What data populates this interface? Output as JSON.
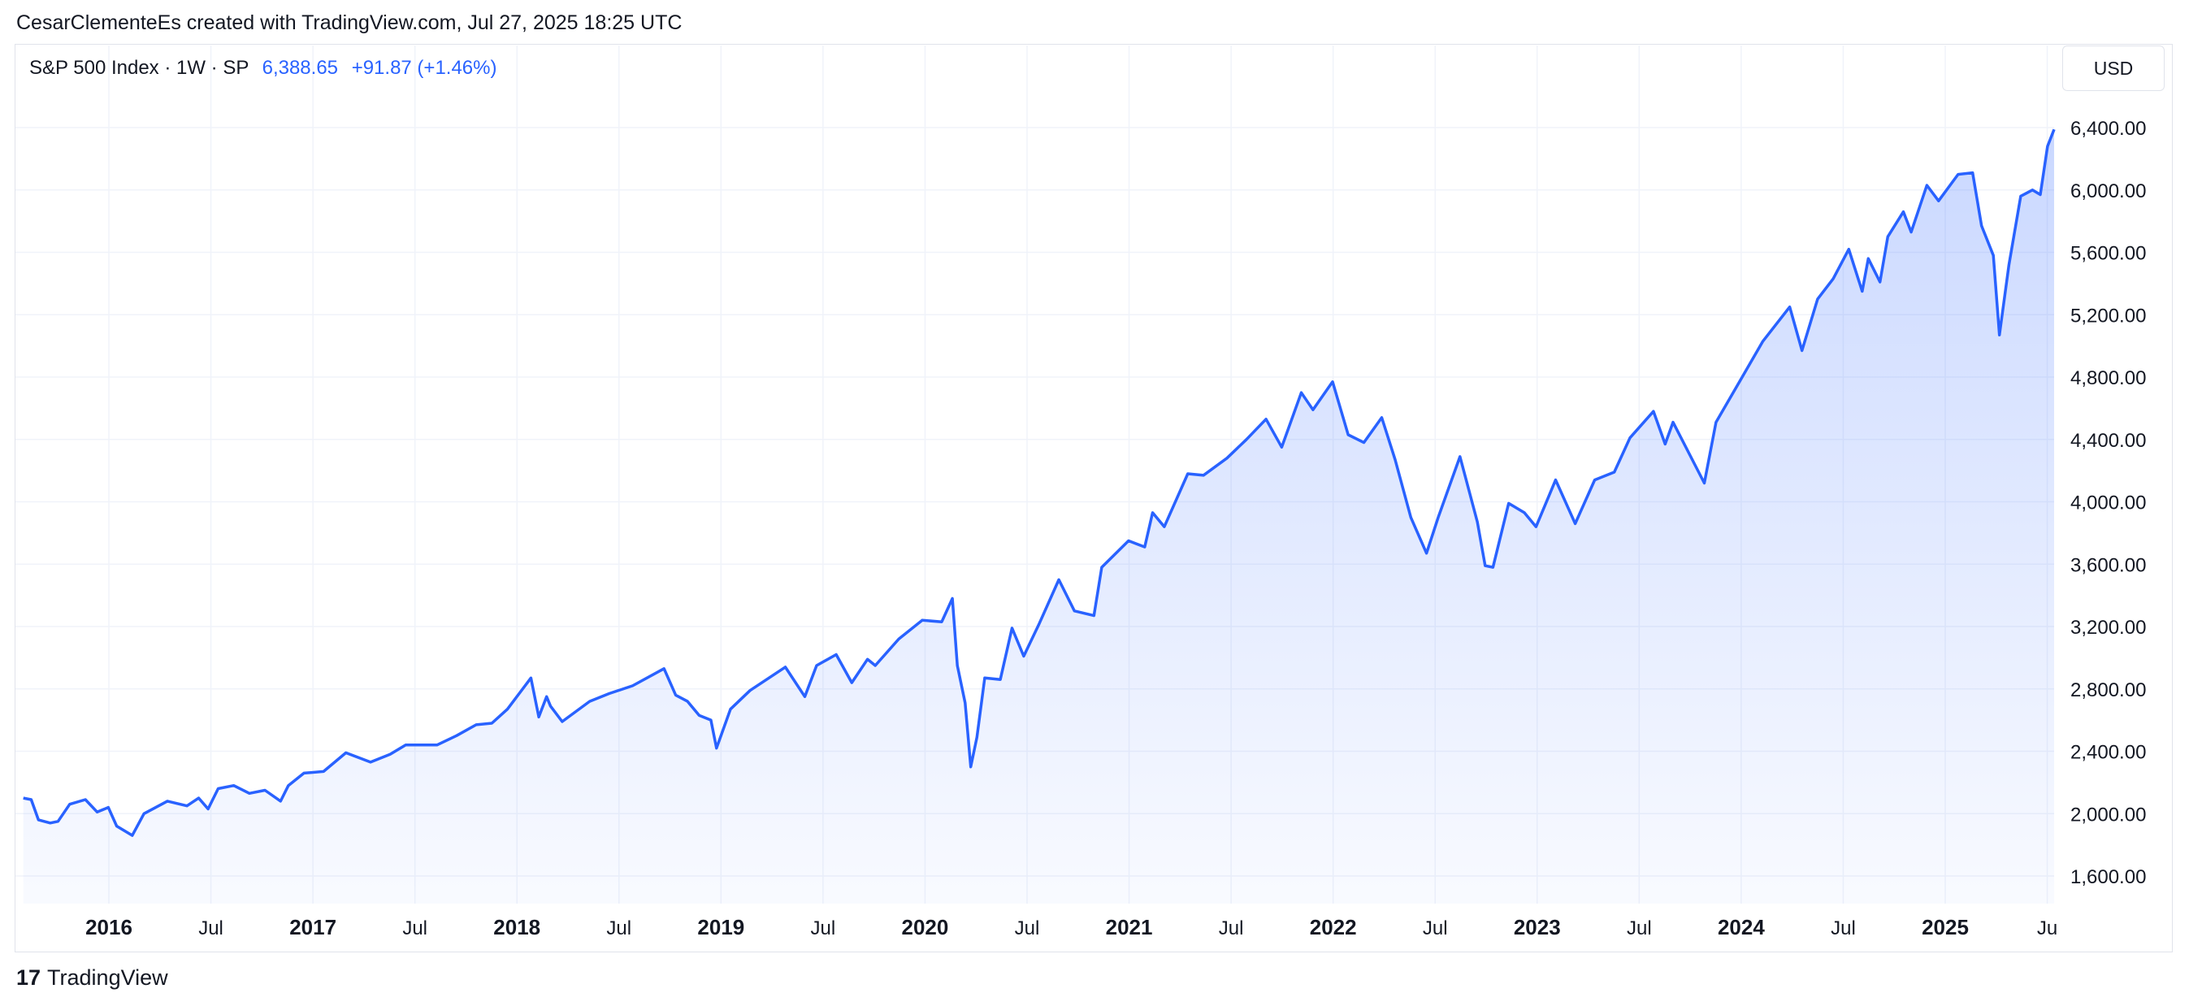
{
  "attribution": "CesarClementeEs created with TradingView.com, Jul 27, 2025 18:25 UTC",
  "legend": {
    "symbol": "S&P 500 Index · 1W · SP",
    "price": "6,388.65",
    "change": "+91.87 (+1.46%)"
  },
  "currency_button": "USD",
  "footer": {
    "logo_mark": "17",
    "brand": "TradingView"
  },
  "colors": {
    "line": "#2962ff",
    "accent": "#2962ff",
    "grid": "#f0f3fa"
  },
  "chart_data": {
    "type": "area",
    "title": "S&P 500 Index · 1W · SP",
    "ylabel": "USD",
    "ylim": [
      1400,
      6600
    ],
    "grid": true,
    "y_ticks": [
      "1,600.00",
      "2,000.00",
      "2,400.00",
      "2,800.00",
      "3,200.00",
      "3,600.00",
      "4,000.00",
      "4,400.00",
      "4,800.00",
      "5,200.00",
      "5,600.00",
      "6,000.00",
      "6,400.00"
    ],
    "x_ticks": [
      {
        "t": 2016.0,
        "label": "2016",
        "bold": true
      },
      {
        "t": 2016.5,
        "label": "Jul",
        "bold": false
      },
      {
        "t": 2017.0,
        "label": "2017",
        "bold": true
      },
      {
        "t": 2017.5,
        "label": "Jul",
        "bold": false
      },
      {
        "t": 2018.0,
        "label": "2018",
        "bold": true
      },
      {
        "t": 2018.5,
        "label": "Jul",
        "bold": false
      },
      {
        "t": 2019.0,
        "label": "2019",
        "bold": true
      },
      {
        "t": 2019.5,
        "label": "Jul",
        "bold": false
      },
      {
        "t": 2020.0,
        "label": "2020",
        "bold": true
      },
      {
        "t": 2020.5,
        "label": "Jul",
        "bold": false
      },
      {
        "t": 2021.0,
        "label": "2021",
        "bold": true
      },
      {
        "t": 2021.5,
        "label": "Jul",
        "bold": false
      },
      {
        "t": 2022.0,
        "label": "2022",
        "bold": true
      },
      {
        "t": 2022.5,
        "label": "Jul",
        "bold": false
      },
      {
        "t": 2023.0,
        "label": "2023",
        "bold": true
      },
      {
        "t": 2023.5,
        "label": "Jul",
        "bold": false
      },
      {
        "t": 2024.0,
        "label": "2024",
        "bold": true
      },
      {
        "t": 2024.5,
        "label": "Jul",
        "bold": false
      },
      {
        "t": 2025.0,
        "label": "2025",
        "bold": true
      },
      {
        "t": 2025.5,
        "label": "Ju",
        "bold": false
      }
    ],
    "series": [
      {
        "values": [
          [
            "2015-08-01",
            2100
          ],
          [
            "2015-08-15",
            2090
          ],
          [
            "2015-08-28",
            1960
          ],
          [
            "2015-09-18",
            1940
          ],
          [
            "2015-10-02",
            1950
          ],
          [
            "2015-10-23",
            2060
          ],
          [
            "2015-11-20",
            2090
          ],
          [
            "2015-12-11",
            2010
          ],
          [
            "2015-12-31",
            2040
          ],
          [
            "2016-01-15",
            1920
          ],
          [
            "2016-02-12",
            1860
          ],
          [
            "2016-03-04",
            2000
          ],
          [
            "2016-04-15",
            2080
          ],
          [
            "2016-05-20",
            2050
          ],
          [
            "2016-06-10",
            2100
          ],
          [
            "2016-06-27",
            2030
          ],
          [
            "2016-07-15",
            2160
          ],
          [
            "2016-08-12",
            2180
          ],
          [
            "2016-09-09",
            2130
          ],
          [
            "2016-10-07",
            2150
          ],
          [
            "2016-11-04",
            2080
          ],
          [
            "2016-11-18",
            2180
          ],
          [
            "2016-12-16",
            2260
          ],
          [
            "2017-01-20",
            2270
          ],
          [
            "2017-03-01",
            2390
          ],
          [
            "2017-04-14",
            2330
          ],
          [
            "2017-05-19",
            2380
          ],
          [
            "2017-06-16",
            2440
          ],
          [
            "2017-08-11",
            2440
          ],
          [
            "2017-09-15",
            2500
          ],
          [
            "2017-10-20",
            2570
          ],
          [
            "2017-11-17",
            2580
          ],
          [
            "2017-12-15",
            2670
          ],
          [
            "2018-01-26",
            2870
          ],
          [
            "2018-02-09",
            2620
          ],
          [
            "2018-02-23",
            2750
          ],
          [
            "2018-03-02",
            2690
          ],
          [
            "2018-03-23",
            2590
          ],
          [
            "2018-05-11",
            2720
          ],
          [
            "2018-06-15",
            2770
          ],
          [
            "2018-07-27",
            2820
          ],
          [
            "2018-09-21",
            2930
          ],
          [
            "2018-10-12",
            2760
          ],
          [
            "2018-11-02",
            2720
          ],
          [
            "2018-11-23",
            2630
          ],
          [
            "2018-12-14",
            2600
          ],
          [
            "2018-12-24",
            2420
          ],
          [
            "2019-01-18",
            2670
          ],
          [
            "2019-02-22",
            2790
          ],
          [
            "2019-04-26",
            2940
          ],
          [
            "2019-05-31",
            2750
          ],
          [
            "2019-06-21",
            2950
          ],
          [
            "2019-07-26",
            3020
          ],
          [
            "2019-08-23",
            2840
          ],
          [
            "2019-09-20",
            2990
          ],
          [
            "2019-10-04",
            2950
          ],
          [
            "2019-11-15",
            3120
          ],
          [
            "2019-12-27",
            3240
          ],
          [
            "2020-01-31",
            3230
          ],
          [
            "2020-02-19",
            3380
          ],
          [
            "2020-02-28",
            2950
          ],
          [
            "2020-03-13",
            2710
          ],
          [
            "2020-03-23",
            2300
          ],
          [
            "2020-04-03",
            2490
          ],
          [
            "2020-04-17",
            2870
          ],
          [
            "2020-05-15",
            2860
          ],
          [
            "2020-06-05",
            3190
          ],
          [
            "2020-06-26",
            3010
          ],
          [
            "2020-07-24",
            3220
          ],
          [
            "2020-08-28",
            3500
          ],
          [
            "2020-09-25",
            3300
          ],
          [
            "2020-10-30",
            3270
          ],
          [
            "2020-11-13",
            3580
          ],
          [
            "2020-12-31",
            3750
          ],
          [
            "2021-01-29",
            3710
          ],
          [
            "2021-02-12",
            3930
          ],
          [
            "2021-03-05",
            3840
          ],
          [
            "2021-04-16",
            4180
          ],
          [
            "2021-05-14",
            4170
          ],
          [
            "2021-06-25",
            4280
          ],
          [
            "2021-07-30",
            4400
          ],
          [
            "2021-09-03",
            4530
          ],
          [
            "2021-10-01",
            4350
          ],
          [
            "2021-11-05",
            4700
          ],
          [
            "2021-11-26",
            4590
          ],
          [
            "2021-12-31",
            4770
          ],
          [
            "2022-01-28",
            4430
          ],
          [
            "2022-02-25",
            4380
          ],
          [
            "2022-03-29",
            4540
          ],
          [
            "2022-04-22",
            4270
          ],
          [
            "2022-05-20",
            3900
          ],
          [
            "2022-06-17",
            3670
          ],
          [
            "2022-07-08",
            3900
          ],
          [
            "2022-08-16",
            4290
          ],
          [
            "2022-09-16",
            3870
          ],
          [
            "2022-09-30",
            3590
          ],
          [
            "2022-10-14",
            3580
          ],
          [
            "2022-11-11",
            3990
          ],
          [
            "2022-12-09",
            3930
          ],
          [
            "2022-12-30",
            3840
          ],
          [
            "2023-02-03",
            4140
          ],
          [
            "2023-03-10",
            3860
          ],
          [
            "2023-04-14",
            4140
          ],
          [
            "2023-05-19",
            4190
          ],
          [
            "2023-06-16",
            4410
          ],
          [
            "2023-07-28",
            4580
          ],
          [
            "2023-08-18",
            4370
          ],
          [
            "2023-09-01",
            4510
          ],
          [
            "2023-10-27",
            4120
          ],
          [
            "2023-11-17",
            4510
          ],
          [
            "2023-12-29",
            4770
          ],
          [
            "2024-02-09",
            5030
          ],
          [
            "2024-03-28",
            5250
          ],
          [
            "2024-04-19",
            4970
          ],
          [
            "2024-05-17",
            5300
          ],
          [
            "2024-06-14",
            5430
          ],
          [
            "2024-07-12",
            5620
          ],
          [
            "2024-08-05",
            5350
          ],
          [
            "2024-08-16",
            5560
          ],
          [
            "2024-09-06",
            5410
          ],
          [
            "2024-09-20",
            5700
          ],
          [
            "2024-10-18",
            5860
          ],
          [
            "2024-11-01",
            5730
          ],
          [
            "2024-11-29",
            6030
          ],
          [
            "2024-12-20",
            5930
          ],
          [
            "2025-01-24",
            6100
          ],
          [
            "2025-02-19",
            6110
          ],
          [
            "2025-03-07",
            5770
          ],
          [
            "2025-03-28",
            5580
          ],
          [
            "2025-04-08",
            5070
          ],
          [
            "2025-04-25",
            5520
          ],
          [
            "2025-05-16",
            5960
          ],
          [
            "2025-06-06",
            6000
          ],
          [
            "2025-06-20",
            5970
          ],
          [
            "2025-07-03",
            6280
          ],
          [
            "2025-07-25",
            6388.65
          ]
        ]
      }
    ]
  }
}
